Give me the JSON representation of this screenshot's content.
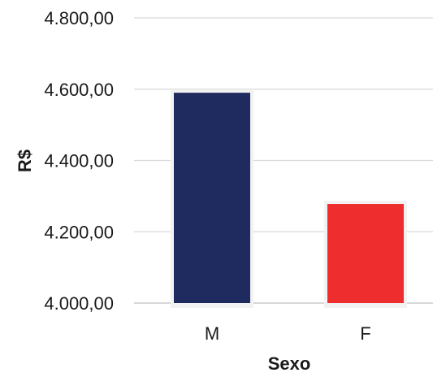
{
  "chart_data": {
    "type": "bar",
    "title": "",
    "xlabel": "Sexo",
    "ylabel": "R$",
    "categories": [
      "M",
      "F"
    ],
    "values": [
      4590,
      4278
    ],
    "colors": [
      "#1f2a5e",
      "#ee2e2e"
    ],
    "ylim": [
      4000,
      4800
    ],
    "yticks": [
      4000,
      4200,
      4400,
      4600,
      4800
    ],
    "ytick_labels": [
      "4.000,00",
      "4.200,00",
      "4.400,00",
      "4.600,00",
      "4.800,00"
    ],
    "grid": true,
    "legend": "none"
  }
}
